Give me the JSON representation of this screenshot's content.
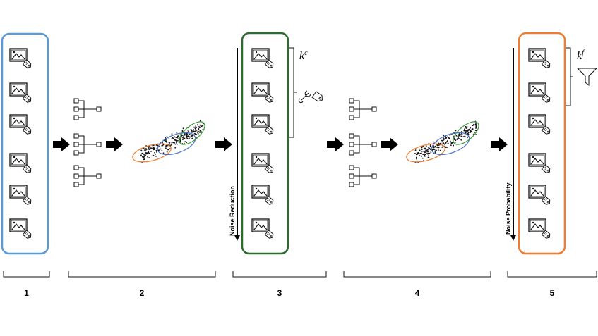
{
  "steps": [
    "1",
    "2",
    "3",
    "4",
    "5"
  ],
  "arrow_labels": {
    "reduction": "Noise Reduction",
    "probability": "Noise Probability"
  },
  "subsets": {
    "clean": {
      "base": "k",
      "sup": "c"
    },
    "filtered": {
      "base": "k",
      "sup": "f"
    }
  }
}
